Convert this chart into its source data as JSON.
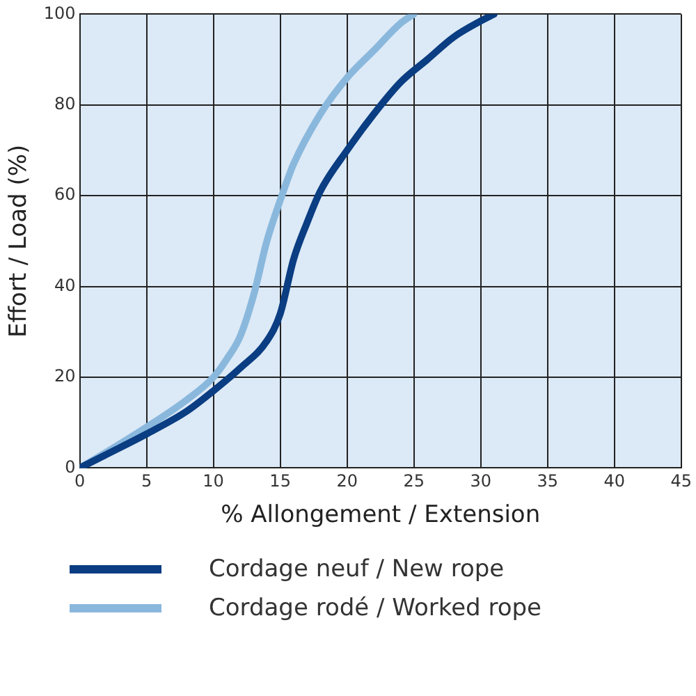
{
  "chart_data": {
    "type": "line",
    "xlabel": "% Allongement / Extension",
    "ylabel": "Effort / Load (%)",
    "xlim": [
      0,
      45
    ],
    "xticks": [
      0,
      5,
      10,
      15,
      20,
      25,
      30,
      35,
      40,
      45
    ],
    "ylim": [
      0,
      100
    ],
    "yticks": [
      0,
      20,
      40,
      60,
      80,
      100
    ],
    "grid": true,
    "legend": "bottom",
    "marker": "none",
    "line_style": "solid",
    "series": [
      {
        "name": "Cordage neuf / New rope",
        "color": "#0a3d82",
        "x": [
          0,
          2,
          5,
          8,
          10,
          12,
          14,
          15,
          16,
          17,
          18,
          20,
          22,
          24,
          26,
          28,
          30,
          31
        ],
        "values": [
          0,
          3,
          7.5,
          12.5,
          17,
          22,
          28,
          34,
          46,
          54,
          61,
          70,
          78,
          85,
          90,
          95,
          98.5,
          100
        ]
      },
      {
        "name": "Cordage rodé / Worked rope",
        "color": "#8ab8dd",
        "x": [
          0,
          2,
          5,
          8,
          10,
          11,
          12,
          13,
          14,
          15,
          16,
          18,
          20,
          22,
          24,
          25
        ],
        "values": [
          0,
          3.5,
          9,
          15,
          20,
          24,
          29,
          38,
          50,
          59,
          67,
          78,
          86,
          92,
          98,
          100
        ]
      }
    ]
  }
}
